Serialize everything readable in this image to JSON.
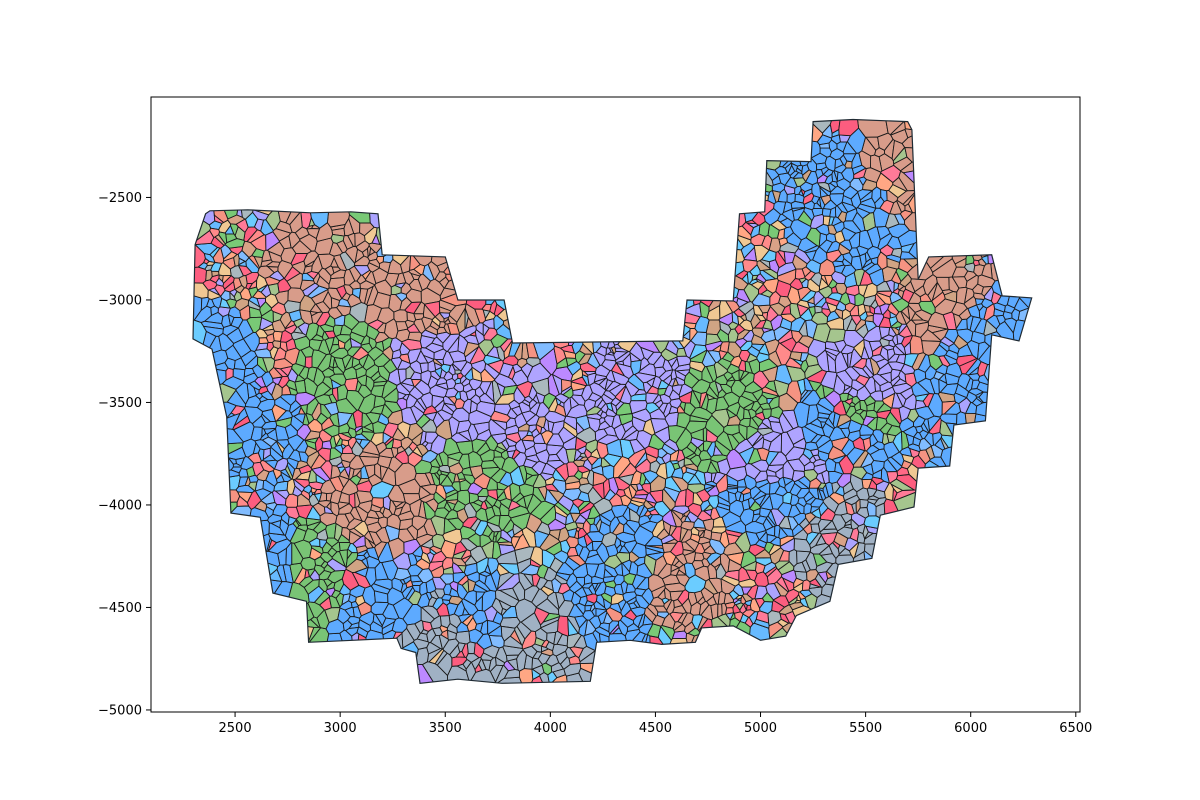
{
  "chart_data": {
    "type": "scatter",
    "title": "",
    "xlabel": "",
    "ylabel": "",
    "xlim": [
      2100,
      6520
    ],
    "ylim": [
      -5010,
      -2010
    ],
    "x_ticks": [
      2500,
      3000,
      3500,
      4000,
      4500,
      5000,
      5500,
      6000,
      6500
    ],
    "y_ticks": [
      -2500,
      -3000,
      -3500,
      -4000,
      -4500,
      -5000
    ],
    "x_tick_labels": [
      "2500",
      "3000",
      "3500",
      "4000",
      "4500",
      "5000",
      "5500",
      "6000",
      "6500"
    ],
    "y_tick_labels": [
      "−2500",
      "−3000",
      "−3500",
      "−4000",
      "−4500",
      "−5000"
    ],
    "grid": false,
    "legend": "none",
    "outline": [
      [
        2300,
        -3190
      ],
      [
        2310,
        -2730
      ],
      [
        2360,
        -2580
      ],
      [
        2380,
        -2565
      ],
      [
        2560,
        -2560
      ],
      [
        2860,
        -2575
      ],
      [
        3050,
        -2570
      ],
      [
        3180,
        -2580
      ],
      [
        3200,
        -2780
      ],
      [
        3500,
        -2790
      ],
      [
        3560,
        -3000
      ],
      [
        3780,
        -3000
      ],
      [
        3820,
        -3210
      ],
      [
        4630,
        -3200
      ],
      [
        4650,
        -3000
      ],
      [
        4870,
        -3005
      ],
      [
        4900,
        -2580
      ],
      [
        5020,
        -2570
      ],
      [
        5030,
        -2320
      ],
      [
        5240,
        -2325
      ],
      [
        5250,
        -2130
      ],
      [
        5440,
        -2120
      ],
      [
        5700,
        -2130
      ],
      [
        5720,
        -2170
      ],
      [
        5750,
        -2900
      ],
      [
        5800,
        -2790
      ],
      [
        6100,
        -2780
      ],
      [
        6150,
        -2980
      ],
      [
        6290,
        -2990
      ],
      [
        6230,
        -3200
      ],
      [
        6100,
        -3170
      ],
      [
        6070,
        -3590
      ],
      [
        5920,
        -3610
      ],
      [
        5900,
        -3810
      ],
      [
        5750,
        -3820
      ],
      [
        5730,
        -4010
      ],
      [
        5570,
        -4050
      ],
      [
        5530,
        -4260
      ],
      [
        5370,
        -4290
      ],
      [
        5330,
        -4470
      ],
      [
        5170,
        -4540
      ],
      [
        5120,
        -4640
      ],
      [
        5000,
        -4660
      ],
      [
        4870,
        -4590
      ],
      [
        4720,
        -4600
      ],
      [
        4690,
        -4670
      ],
      [
        4530,
        -4680
      ],
      [
        4380,
        -4660
      ],
      [
        4220,
        -4670
      ],
      [
        4190,
        -4860
      ],
      [
        3770,
        -4870
      ],
      [
        3560,
        -4850
      ],
      [
        3380,
        -4870
      ],
      [
        3360,
        -4720
      ],
      [
        3290,
        -4700
      ],
      [
        3270,
        -4650
      ],
      [
        3060,
        -4660
      ],
      [
        2850,
        -4670
      ],
      [
        2840,
        -4470
      ],
      [
        2680,
        -4430
      ],
      [
        2620,
        -4060
      ],
      [
        2480,
        -4040
      ],
      [
        2460,
        -3570
      ],
      [
        2390,
        -3240
      ]
    ],
    "color_zones": [
      {
        "name": "blue",
        "color": "#4fa3ff",
        "points": [
          [
            2350,
            -3300
          ],
          [
            2560,
            -3660
          ],
          [
            2620,
            -4300
          ],
          [
            3180,
            -4450
          ],
          [
            3700,
            -4580
          ],
          [
            4200,
            -4550
          ],
          [
            4400,
            -4300
          ],
          [
            5050,
            -3900
          ],
          [
            5450,
            -3600
          ],
          [
            5850,
            -3500
          ],
          [
            6050,
            -3100
          ],
          [
            5500,
            -2600
          ],
          [
            5330,
            -2500
          ]
        ]
      },
      {
        "name": "steel",
        "color": "#98aabf",
        "points": [
          [
            3480,
            -4700
          ],
          [
            3620,
            -4720
          ],
          [
            3850,
            -4560
          ],
          [
            4050,
            -4600
          ],
          [
            5430,
            -4190
          ],
          [
            5470,
            -4240
          ]
        ]
      },
      {
        "name": "lavender",
        "color": "#a89cff",
        "points": [
          [
            3450,
            -3300
          ],
          [
            3620,
            -3520
          ],
          [
            3900,
            -3600
          ],
          [
            4450,
            -3450
          ],
          [
            5050,
            -3850
          ],
          [
            5530,
            -3430
          ]
        ]
      },
      {
        "name": "green",
        "color": "#6ebf69",
        "points": [
          [
            3040,
            -3380
          ],
          [
            3680,
            -3880
          ],
          [
            4800,
            -3540
          ],
          [
            5480,
            -3560
          ],
          [
            2880,
            -4350
          ]
        ]
      },
      {
        "name": "tan",
        "color": "#d59480",
        "points": [
          [
            2900,
            -2800
          ],
          [
            3380,
            -3050
          ],
          [
            5700,
            -2400
          ],
          [
            5940,
            -3000
          ],
          [
            3200,
            -4000
          ],
          [
            4600,
            -4330
          ]
        ]
      }
    ],
    "cell_palette": [
      "#ff6f8f",
      "#ff5c7c",
      "#fc4f74",
      "#ff8080",
      "#f48a77",
      "#d69a7d",
      "#ffa07a",
      "#76b6ff",
      "#5ab4ff",
      "#5ec8ff",
      "#a49cff",
      "#b67fff",
      "#6ec46a",
      "#9dc084",
      "#cc9c7a",
      "#a3b2b8",
      "#efc38a"
    ],
    "cell_count": 3400,
    "random_seed": 7
  }
}
